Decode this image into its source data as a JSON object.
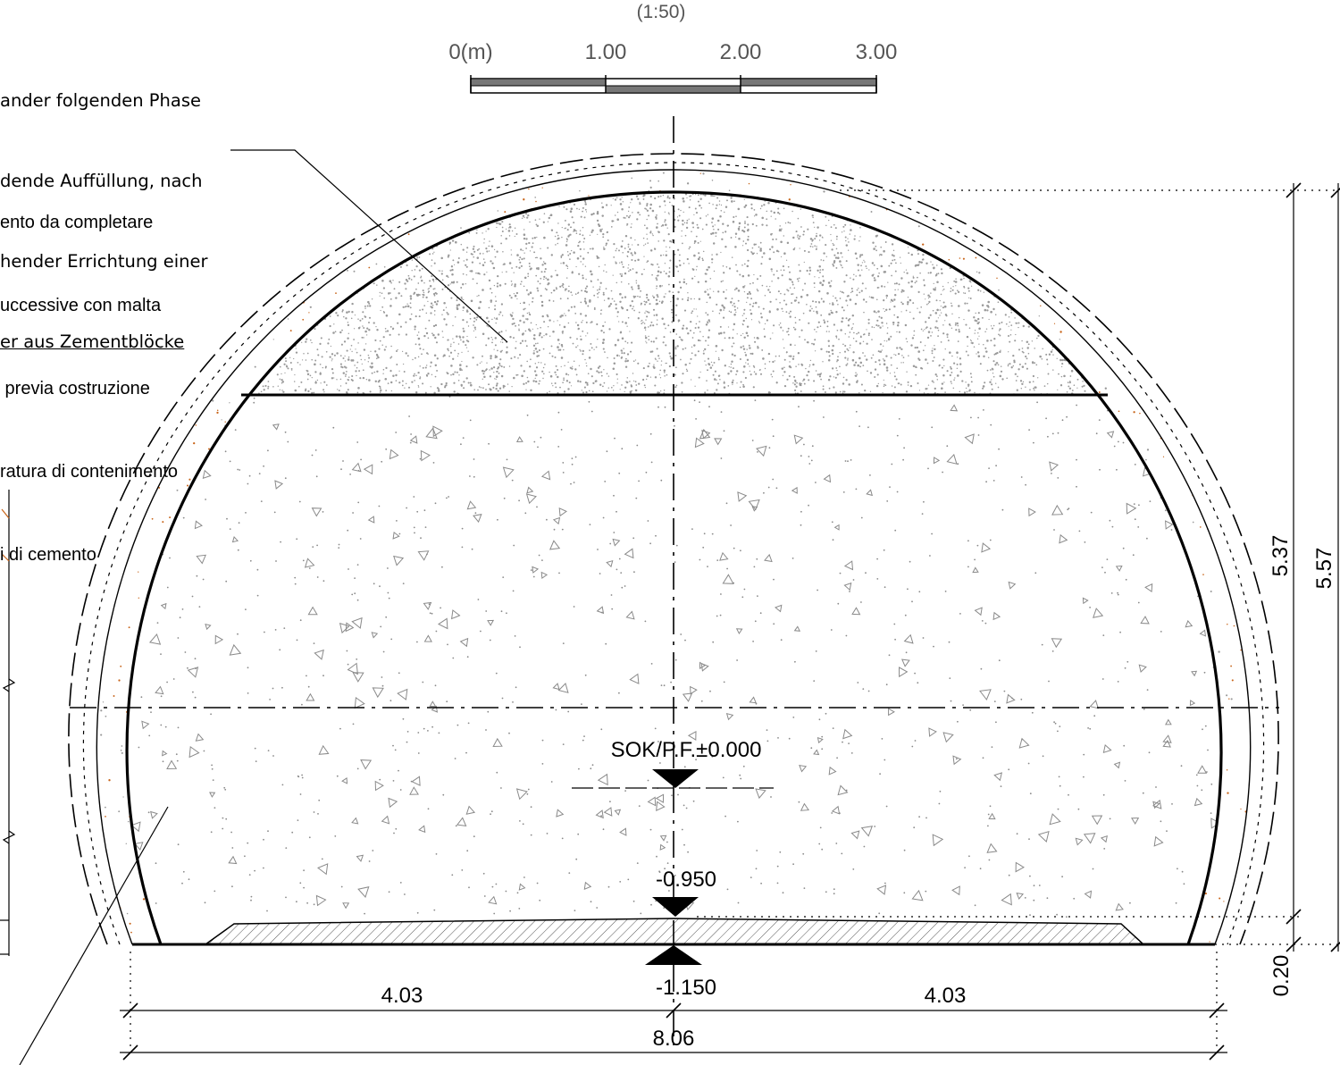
{
  "scale": {
    "ratio": "(1:50)",
    "labels": [
      "0(m)",
      "1.00",
      "2.00",
      "3.00"
    ]
  },
  "notes": {
    "german": [
      "ander folgenden Phase",
      "dende Auffüllung, nach",
      "hender Errichtung einer",
      "er aus Zementblöcke"
    ],
    "italian": [
      "ento da completare",
      "uccessive con malta",
      " previa costruzione",
      "ratura di contenimento",
      "i di cemento"
    ]
  },
  "levels": {
    "top": "SOK/P.F.±0.000",
    "mid": "-0.950",
    "bottom": "-1.150"
  },
  "dimensions": {
    "height_inner": "5.37",
    "height_outer": "5.57",
    "slab": "0.20",
    "half_left": "4.03",
    "half_right": "4.03",
    "total_width": "8.06"
  },
  "colors": {
    "line": "#000000",
    "gravel": "#9a9a9a",
    "concrete_dots": "#8a8a8a",
    "lining_dots": "#c8651a",
    "scale_label": "#555555"
  }
}
